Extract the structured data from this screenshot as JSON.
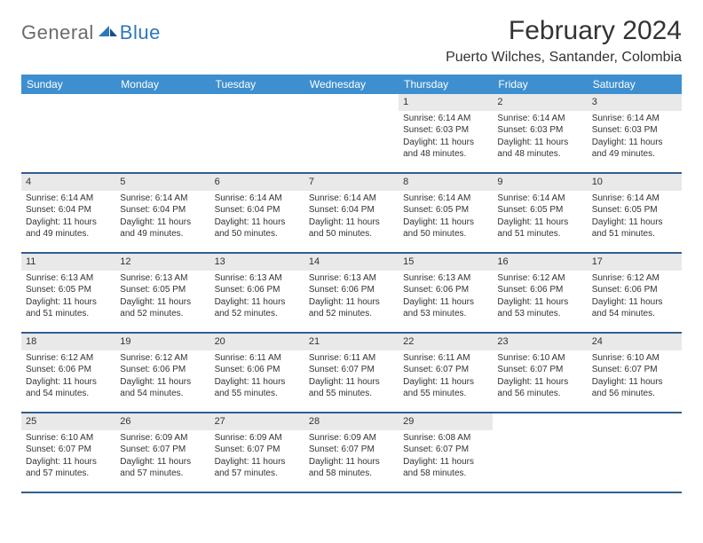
{
  "logo": {
    "text_general": "General",
    "text_blue": "Blue"
  },
  "title": "February 2024",
  "location": "Puerto Wilches, Santander, Colombia",
  "colors": {
    "header_bg": "#3e8fcf",
    "header_text": "#ffffff",
    "daynum_bg": "#e9e9e9",
    "row_border": "#2f5f8f",
    "logo_gray": "#6b6b6b",
    "logo_blue": "#2f77bb",
    "body_text": "#333333",
    "page_bg": "#ffffff"
  },
  "typography": {
    "title_size": 30,
    "location_size": 16,
    "weekday_size": 12,
    "daynum_size": 11,
    "body_size": 10
  },
  "weekdays": [
    "Sunday",
    "Monday",
    "Tuesday",
    "Wednesday",
    "Thursday",
    "Friday",
    "Saturday"
  ],
  "weeks": [
    [
      {
        "empty": true
      },
      {
        "empty": true
      },
      {
        "empty": true
      },
      {
        "empty": true
      },
      {
        "num": "1",
        "sunrise": "Sunrise: 6:14 AM",
        "sunset": "Sunset: 6:03 PM",
        "daylight": "Daylight: 11 hours and 48 minutes."
      },
      {
        "num": "2",
        "sunrise": "Sunrise: 6:14 AM",
        "sunset": "Sunset: 6:03 PM",
        "daylight": "Daylight: 11 hours and 48 minutes."
      },
      {
        "num": "3",
        "sunrise": "Sunrise: 6:14 AM",
        "sunset": "Sunset: 6:03 PM",
        "daylight": "Daylight: 11 hours and 49 minutes."
      }
    ],
    [
      {
        "num": "4",
        "sunrise": "Sunrise: 6:14 AM",
        "sunset": "Sunset: 6:04 PM",
        "daylight": "Daylight: 11 hours and 49 minutes."
      },
      {
        "num": "5",
        "sunrise": "Sunrise: 6:14 AM",
        "sunset": "Sunset: 6:04 PM",
        "daylight": "Daylight: 11 hours and 49 minutes."
      },
      {
        "num": "6",
        "sunrise": "Sunrise: 6:14 AM",
        "sunset": "Sunset: 6:04 PM",
        "daylight": "Daylight: 11 hours and 50 minutes."
      },
      {
        "num": "7",
        "sunrise": "Sunrise: 6:14 AM",
        "sunset": "Sunset: 6:04 PM",
        "daylight": "Daylight: 11 hours and 50 minutes."
      },
      {
        "num": "8",
        "sunrise": "Sunrise: 6:14 AM",
        "sunset": "Sunset: 6:05 PM",
        "daylight": "Daylight: 11 hours and 50 minutes."
      },
      {
        "num": "9",
        "sunrise": "Sunrise: 6:14 AM",
        "sunset": "Sunset: 6:05 PM",
        "daylight": "Daylight: 11 hours and 51 minutes."
      },
      {
        "num": "10",
        "sunrise": "Sunrise: 6:14 AM",
        "sunset": "Sunset: 6:05 PM",
        "daylight": "Daylight: 11 hours and 51 minutes."
      }
    ],
    [
      {
        "num": "11",
        "sunrise": "Sunrise: 6:13 AM",
        "sunset": "Sunset: 6:05 PM",
        "daylight": "Daylight: 11 hours and 51 minutes."
      },
      {
        "num": "12",
        "sunrise": "Sunrise: 6:13 AM",
        "sunset": "Sunset: 6:05 PM",
        "daylight": "Daylight: 11 hours and 52 minutes."
      },
      {
        "num": "13",
        "sunrise": "Sunrise: 6:13 AM",
        "sunset": "Sunset: 6:06 PM",
        "daylight": "Daylight: 11 hours and 52 minutes."
      },
      {
        "num": "14",
        "sunrise": "Sunrise: 6:13 AM",
        "sunset": "Sunset: 6:06 PM",
        "daylight": "Daylight: 11 hours and 52 minutes."
      },
      {
        "num": "15",
        "sunrise": "Sunrise: 6:13 AM",
        "sunset": "Sunset: 6:06 PM",
        "daylight": "Daylight: 11 hours and 53 minutes."
      },
      {
        "num": "16",
        "sunrise": "Sunrise: 6:12 AM",
        "sunset": "Sunset: 6:06 PM",
        "daylight": "Daylight: 11 hours and 53 minutes."
      },
      {
        "num": "17",
        "sunrise": "Sunrise: 6:12 AM",
        "sunset": "Sunset: 6:06 PM",
        "daylight": "Daylight: 11 hours and 54 minutes."
      }
    ],
    [
      {
        "num": "18",
        "sunrise": "Sunrise: 6:12 AM",
        "sunset": "Sunset: 6:06 PM",
        "daylight": "Daylight: 11 hours and 54 minutes."
      },
      {
        "num": "19",
        "sunrise": "Sunrise: 6:12 AM",
        "sunset": "Sunset: 6:06 PM",
        "daylight": "Daylight: 11 hours and 54 minutes."
      },
      {
        "num": "20",
        "sunrise": "Sunrise: 6:11 AM",
        "sunset": "Sunset: 6:06 PM",
        "daylight": "Daylight: 11 hours and 55 minutes."
      },
      {
        "num": "21",
        "sunrise": "Sunrise: 6:11 AM",
        "sunset": "Sunset: 6:07 PM",
        "daylight": "Daylight: 11 hours and 55 minutes."
      },
      {
        "num": "22",
        "sunrise": "Sunrise: 6:11 AM",
        "sunset": "Sunset: 6:07 PM",
        "daylight": "Daylight: 11 hours and 55 minutes."
      },
      {
        "num": "23",
        "sunrise": "Sunrise: 6:10 AM",
        "sunset": "Sunset: 6:07 PM",
        "daylight": "Daylight: 11 hours and 56 minutes."
      },
      {
        "num": "24",
        "sunrise": "Sunrise: 6:10 AM",
        "sunset": "Sunset: 6:07 PM",
        "daylight": "Daylight: 11 hours and 56 minutes."
      }
    ],
    [
      {
        "num": "25",
        "sunrise": "Sunrise: 6:10 AM",
        "sunset": "Sunset: 6:07 PM",
        "daylight": "Daylight: 11 hours and 57 minutes."
      },
      {
        "num": "26",
        "sunrise": "Sunrise: 6:09 AM",
        "sunset": "Sunset: 6:07 PM",
        "daylight": "Daylight: 11 hours and 57 minutes."
      },
      {
        "num": "27",
        "sunrise": "Sunrise: 6:09 AM",
        "sunset": "Sunset: 6:07 PM",
        "daylight": "Daylight: 11 hours and 57 minutes."
      },
      {
        "num": "28",
        "sunrise": "Sunrise: 6:09 AM",
        "sunset": "Sunset: 6:07 PM",
        "daylight": "Daylight: 11 hours and 58 minutes."
      },
      {
        "num": "29",
        "sunrise": "Sunrise: 6:08 AM",
        "sunset": "Sunset: 6:07 PM",
        "daylight": "Daylight: 11 hours and 58 minutes."
      },
      {
        "empty": true
      },
      {
        "empty": true
      }
    ]
  ]
}
